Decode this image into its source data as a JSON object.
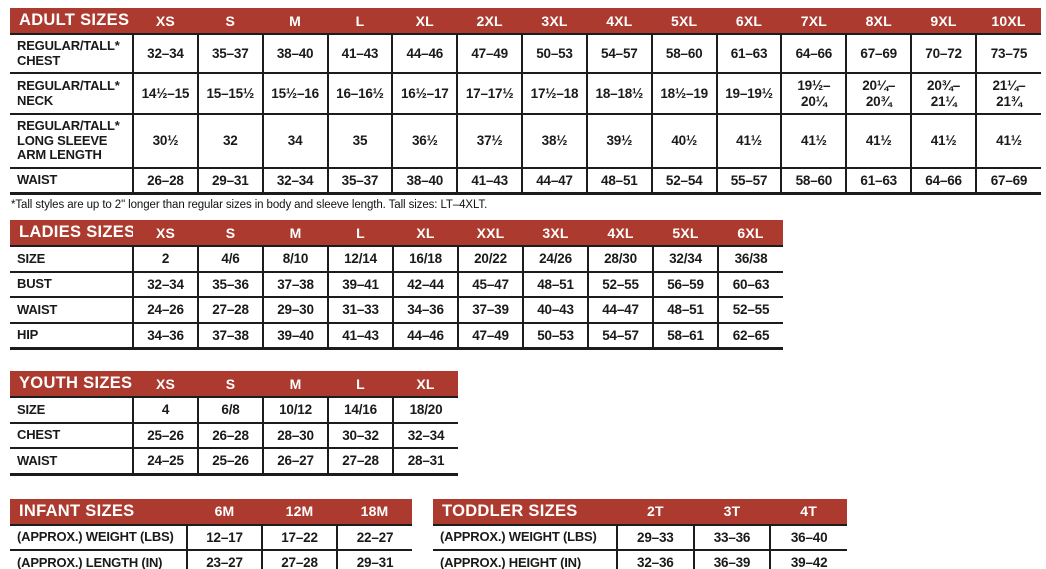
{
  "colors": {
    "header_bg": "#AC3A2E",
    "header_text": "#FFFFFF",
    "grid_line": "#1C1C1C",
    "body_text": "#1A1A1A",
    "background": "#FFFFFF"
  },
  "tables": {
    "adult": {
      "title": "ADULT SIZES",
      "columns": [
        "XS",
        "S",
        "M",
        "L",
        "XL",
        "2XL",
        "3XL",
        "4XL",
        "5XL",
        "6XL",
        "7XL",
        "8XL",
        "9XL",
        "10XL"
      ],
      "rows": [
        {
          "label": "REGULAR/TALL*\nCHEST",
          "values": [
            "32–34",
            "35–37",
            "38–40",
            "41–43",
            "44–46",
            "47–49",
            "50–53",
            "54–57",
            "58–60",
            "61–63",
            "64–66",
            "67–69",
            "70–72",
            "73–75"
          ]
        },
        {
          "label": "REGULAR/TALL*\nNECK",
          "values": [
            "14½–15",
            "15–15½",
            "15½–16",
            "16–16½",
            "16½–17",
            "17–17½",
            "17½–18",
            "18–18½",
            "18½–19",
            "19–19½",
            "19½–\n20¼",
            "20¼–\n20¾",
            "20¾–\n21¼",
            "21¼–\n21¾"
          ]
        },
        {
          "label": "REGULAR/TALL*\nLONG SLEEVE\nARM LENGTH",
          "values": [
            "30½",
            "32",
            "34",
            "35",
            "36½",
            "37½",
            "38½",
            "39½",
            "40½",
            "41½",
            "41½",
            "41½",
            "41½",
            "41½"
          ]
        },
        {
          "label": "WAIST",
          "values": [
            "26–28",
            "29–31",
            "32–34",
            "35–37",
            "38–40",
            "41–43",
            "44–47",
            "48–51",
            "52–54",
            "55–57",
            "58–60",
            "61–63",
            "64–66",
            "67–69"
          ]
        }
      ],
      "footnote": "*Tall styles are up to 2\" longer than regular sizes in body and sleeve length. Tall sizes: LT–4XLT."
    },
    "ladies": {
      "title": "LADIES SIZES",
      "columns": [
        "XS",
        "S",
        "M",
        "L",
        "XL",
        "XXL",
        "3XL",
        "4XL",
        "5XL",
        "6XL"
      ],
      "rows": [
        {
          "label": "SIZE",
          "values": [
            "2",
            "4/6",
            "8/10",
            "12/14",
            "16/18",
            "20/22",
            "24/26",
            "28/30",
            "32/34",
            "36/38"
          ]
        },
        {
          "label": "BUST",
          "values": [
            "32–34",
            "35–36",
            "37–38",
            "39–41",
            "42–44",
            "45–47",
            "48–51",
            "52–55",
            "56–59",
            "60–63"
          ]
        },
        {
          "label": "WAIST",
          "values": [
            "24–26",
            "27–28",
            "29–30",
            "31–33",
            "34–36",
            "37–39",
            "40–43",
            "44–47",
            "48–51",
            "52–55"
          ]
        },
        {
          "label": "HIP",
          "values": [
            "34–36",
            "37–38",
            "39–40",
            "41–43",
            "44–46",
            "47–49",
            "50–53",
            "54–57",
            "58–61",
            "62–65"
          ]
        }
      ]
    },
    "youth": {
      "title": "YOUTH SIZES",
      "columns": [
        "XS",
        "S",
        "M",
        "L",
        "XL"
      ],
      "rows": [
        {
          "label": "SIZE",
          "values": [
            "4",
            "6/8",
            "10/12",
            "14/16",
            "18/20"
          ]
        },
        {
          "label": "CHEST",
          "values": [
            "25–26",
            "26–28",
            "28–30",
            "30–32",
            "32–34"
          ]
        },
        {
          "label": "WAIST",
          "values": [
            "24–25",
            "25–26",
            "26–27",
            "27–28",
            "28–31"
          ]
        }
      ]
    },
    "infant": {
      "title": "INFANT SIZES",
      "columns": [
        "6M",
        "12M",
        "18M"
      ],
      "rows": [
        {
          "label": "(APPROX.) WEIGHT (LBS)",
          "values": [
            "12–17",
            "17–22",
            "22–27"
          ]
        },
        {
          "label": "(APPROX.) LENGTH (IN)",
          "values": [
            "23–27",
            "27–28",
            "29–31"
          ]
        }
      ]
    },
    "toddler": {
      "title": "TODDLER SIZES",
      "columns": [
        "2T",
        "3T",
        "4T"
      ],
      "rows": [
        {
          "label": "(APPROX.) WEIGHT (LBS)",
          "values": [
            "29–33",
            "33–36",
            "36–40"
          ]
        },
        {
          "label": "(APPROX.) HEIGHT (IN)",
          "values": [
            "32–36",
            "36–39",
            "39–42"
          ]
        }
      ]
    }
  }
}
